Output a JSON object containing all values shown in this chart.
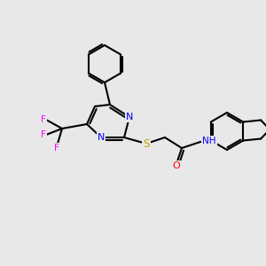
{
  "background_color": "#e8e8e8",
  "bond_color": "#000000",
  "atom_colors": {
    "N": "#0000ff",
    "O": "#ff0000",
    "S": "#bbaa00",
    "F": "#ff00ff",
    "H": "#008080",
    "C": "#000000"
  },
  "figsize": [
    3.0,
    3.0
  ],
  "dpi": 100
}
